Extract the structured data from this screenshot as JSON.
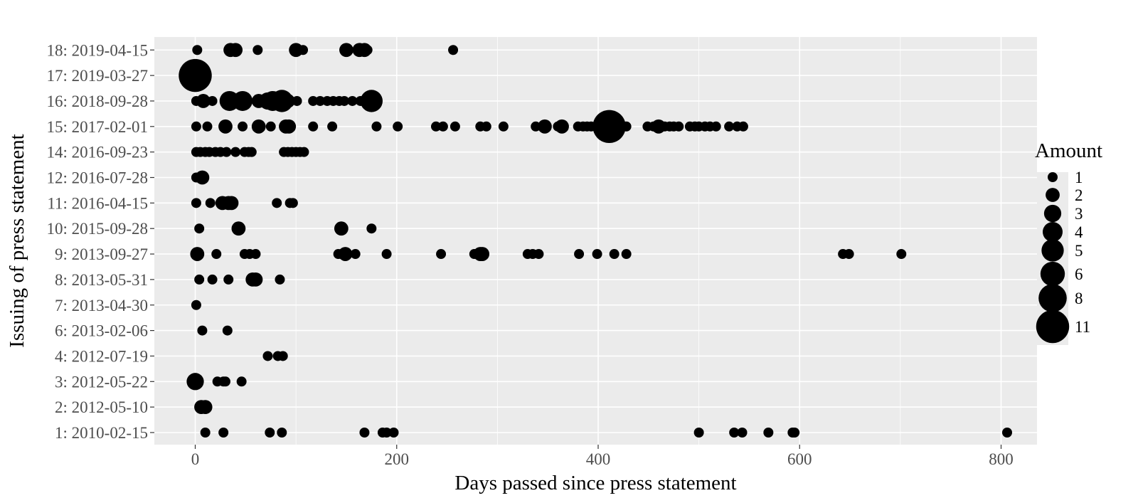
{
  "colors": {
    "panel_background": "#ebebeb",
    "grid_major": "#ffffff",
    "point": "#000000",
    "tick_text": "#4d4d4d"
  },
  "chart_data": {
    "type": "scatter",
    "title": "",
    "xlabel": "Days passed since press statement",
    "ylabel": "Issuing of press statement",
    "xlim": [
      -40,
      845
    ],
    "xticks": [
      0,
      200,
      400,
      600,
      800
    ],
    "categories": [
      "1: 2010-02-15",
      "2: 2012-05-10",
      "3: 2012-05-22",
      "4: 2012-07-19",
      "6: 2013-02-06",
      "7: 2013-04-30",
      "8: 2013-05-31",
      "9: 2013-09-27",
      "10: 2015-09-28",
      "11: 2016-04-15",
      "12: 2016-07-28",
      "14: 2016-09-23",
      "15: 2017-02-01",
      "16: 2018-09-28",
      "17: 2019-03-27",
      "18: 2019-04-15"
    ],
    "grid": true,
    "legend": {
      "title": "Amount",
      "position": "right",
      "sizes": [
        1,
        2,
        3,
        4,
        5,
        6,
        8,
        11
      ]
    },
    "series": [
      {
        "category": "1: 2010-02-15",
        "points": [
          [
            10,
            1
          ],
          [
            28,
            1
          ],
          [
            74,
            1
          ],
          [
            86,
            1
          ],
          [
            168,
            1
          ],
          [
            186,
            1
          ],
          [
            190,
            1
          ],
          [
            197,
            1
          ],
          [
            500,
            1
          ],
          [
            535,
            1
          ],
          [
            543,
            1
          ],
          [
            569,
            1
          ],
          [
            593,
            1
          ],
          [
            595,
            1
          ],
          [
            806,
            1
          ]
        ]
      },
      {
        "category": "2: 2012-05-10",
        "points": [
          [
            6,
            2
          ],
          [
            10,
            2
          ]
        ]
      },
      {
        "category": "3: 2012-05-22",
        "points": [
          [
            0,
            3
          ],
          [
            22,
            1
          ],
          [
            28,
            1
          ],
          [
            30,
            1
          ],
          [
            46,
            1
          ]
        ]
      },
      {
        "category": "4: 2012-07-19",
        "points": [
          [
            72,
            1
          ],
          [
            82,
            1
          ],
          [
            87,
            1
          ]
        ]
      },
      {
        "category": "6: 2013-02-06",
        "points": [
          [
            7,
            1
          ],
          [
            32,
            1
          ]
        ]
      },
      {
        "category": "7: 2013-04-30",
        "points": [
          [
            1,
            1
          ]
        ]
      },
      {
        "category": "8: 2013-05-31",
        "points": [
          [
            4,
            1
          ],
          [
            17,
            1
          ],
          [
            33,
            1
          ],
          [
            57,
            2
          ],
          [
            60,
            2
          ],
          [
            84,
            1
          ]
        ]
      },
      {
        "category": "9: 2013-09-27",
        "points": [
          [
            2,
            2
          ],
          [
            21,
            1
          ],
          [
            49,
            1
          ],
          [
            54,
            1
          ],
          [
            60,
            1
          ],
          [
            142,
            1
          ],
          [
            145,
            1
          ],
          [
            149,
            2
          ],
          [
            159,
            1
          ],
          [
            190,
            1
          ],
          [
            244,
            1
          ],
          [
            277,
            1
          ],
          [
            283,
            2
          ],
          [
            285,
            2
          ],
          [
            330,
            1
          ],
          [
            335,
            1
          ],
          [
            341,
            1
          ],
          [
            381,
            1
          ],
          [
            399,
            1
          ],
          [
            416,
            1
          ],
          [
            428,
            1
          ],
          [
            643,
            1
          ],
          [
            649,
            1
          ],
          [
            701,
            1
          ]
        ]
      },
      {
        "category": "10: 2015-09-28",
        "points": [
          [
            4,
            1
          ],
          [
            43,
            2
          ],
          [
            145,
            2
          ],
          [
            175,
            1
          ]
        ]
      },
      {
        "category": "11: 2016-04-15",
        "points": [
          [
            1,
            1
          ],
          [
            15,
            1
          ],
          [
            27,
            2
          ],
          [
            33,
            2
          ],
          [
            36,
            2
          ],
          [
            81,
            1
          ],
          [
            94,
            1
          ],
          [
            97,
            1
          ]
        ]
      },
      {
        "category": "12: 2016-07-28",
        "points": [
          [
            1,
            1
          ],
          [
            7,
            2
          ]
        ]
      },
      {
        "category": "14: 2016-09-23",
        "points": [
          [
            1,
            1
          ],
          [
            5,
            1
          ],
          [
            10,
            1
          ],
          [
            14,
            1
          ],
          [
            20,
            1
          ],
          [
            25,
            1
          ],
          [
            31,
            1
          ],
          [
            40,
            1
          ],
          [
            49,
            1
          ],
          [
            53,
            1
          ],
          [
            56,
            1
          ],
          [
            88,
            1
          ],
          [
            92,
            1
          ],
          [
            96,
            1
          ],
          [
            100,
            1
          ],
          [
            104,
            1
          ],
          [
            108,
            1
          ]
        ]
      },
      {
        "category": "15: 2017-02-01",
        "points": [
          [
            1,
            1
          ],
          [
            12,
            1
          ],
          [
            30,
            2
          ],
          [
            47,
            1
          ],
          [
            63,
            2
          ],
          [
            75,
            1
          ],
          [
            90,
            2
          ],
          [
            93,
            2
          ],
          [
            117,
            1
          ],
          [
            136,
            1
          ],
          [
            180,
            1
          ],
          [
            201,
            1
          ],
          [
            239,
            1
          ],
          [
            246,
            1
          ],
          [
            258,
            1
          ],
          [
            283,
            1
          ],
          [
            289,
            1
          ],
          [
            306,
            1
          ],
          [
            338,
            1
          ],
          [
            347,
            2
          ],
          [
            360,
            1
          ],
          [
            364,
            2
          ],
          [
            380,
            1
          ],
          [
            385,
            1
          ],
          [
            389,
            1
          ],
          [
            393,
            1
          ],
          [
            400,
            1
          ],
          [
            404,
            1
          ],
          [
            408,
            1
          ],
          [
            411,
            11
          ],
          [
            414,
            1
          ],
          [
            428,
            1
          ],
          [
            449,
            1
          ],
          [
            455,
            1
          ],
          [
            460,
            2
          ],
          [
            466,
            1
          ],
          [
            471,
            1
          ],
          [
            475,
            1
          ],
          [
            480,
            1
          ],
          [
            491,
            1
          ],
          [
            496,
            1
          ],
          [
            500,
            1
          ],
          [
            506,
            1
          ],
          [
            511,
            1
          ],
          [
            517,
            1
          ],
          [
            530,
            1
          ],
          [
            538,
            1
          ],
          [
            544,
            1
          ]
        ]
      },
      {
        "category": "16: 2018-09-28",
        "points": [
          [
            1,
            1
          ],
          [
            8,
            2
          ],
          [
            17,
            1
          ],
          [
            34,
            4
          ],
          [
            47,
            4
          ],
          [
            63,
            2
          ],
          [
            72,
            3
          ],
          [
            77,
            4
          ],
          [
            86,
            5
          ],
          [
            92,
            2
          ],
          [
            101,
            1
          ],
          [
            117,
            1
          ],
          [
            124,
            1
          ],
          [
            131,
            1
          ],
          [
            137,
            1
          ],
          [
            143,
            1
          ],
          [
            148,
            1
          ],
          [
            156,
            1
          ],
          [
            164,
            1
          ],
          [
            175,
            5
          ]
        ]
      },
      {
        "category": "17: 2019-03-27",
        "points": [
          [
            0,
            11
          ]
        ]
      },
      {
        "category": "18: 2019-04-15",
        "points": [
          [
            2,
            1
          ],
          [
            35,
            2
          ],
          [
            40,
            2
          ],
          [
            62,
            1
          ],
          [
            100,
            2
          ],
          [
            107,
            1
          ],
          [
            150,
            2
          ],
          [
            163,
            2
          ],
          [
            168,
            2
          ],
          [
            171,
            1
          ],
          [
            256,
            1
          ]
        ]
      }
    ]
  }
}
